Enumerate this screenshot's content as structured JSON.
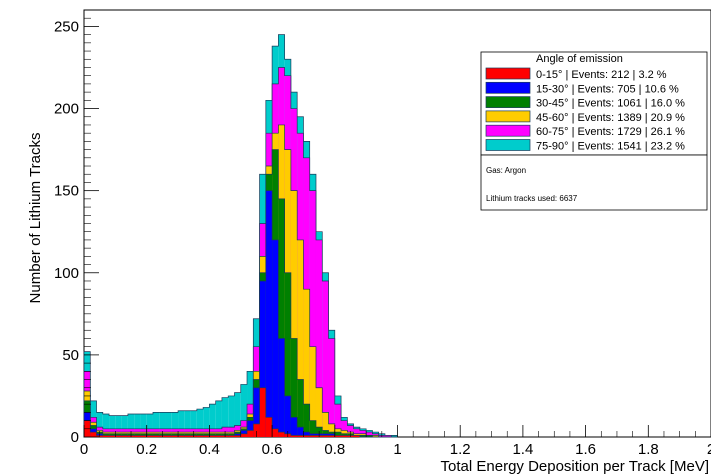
{
  "chart_data": {
    "type": "histogram-stacked",
    "xlabel": "Total Energy Deposition per Track [MeV]",
    "ylabel": "Number of Lithium Tracks",
    "xlim": [
      0,
      2
    ],
    "ylim": [
      0,
      260
    ],
    "x_ticks": [
      "0",
      "0.2",
      "0.4",
      "0.6",
      "0.8",
      "1",
      "1.2",
      "1.4",
      "1.6",
      "1.8",
      "2"
    ],
    "y_ticks": [
      "0",
      "50",
      "100",
      "150",
      "200",
      "250"
    ],
    "legend_title": "Angle of emission",
    "series": [
      {
        "name": "0-15°",
        "label": "0-15°   | Events: 212 | 3.2 %",
        "color": "#ff0000"
      },
      {
        "name": "15-30°",
        "label": "15-30° | Events: 705 | 10.6 %",
        "color": "#0000ff"
      },
      {
        "name": "30-45°",
        "label": "30-45° | Events: 1061 | 16.0 %",
        "color": "#008000"
      },
      {
        "name": "45-60°",
        "label": "45-60° | Events: 1389 | 20.9 %",
        "color": "#ffcc00"
      },
      {
        "name": "60-75°",
        "label": "60-75° | Events: 1729 | 26.1 %",
        "color": "#ff00ff"
      },
      {
        "name": "75-90°",
        "label": "75-90° | Events: 1541 | 23.2 %",
        "color": "#00cccc"
      }
    ],
    "annotations": [
      "Gas: Argon",
      "Lithium tracks used: 6637"
    ],
    "bin_width": 0.02,
    "bin_starts": [
      0.0,
      0.02,
      0.04,
      0.06,
      0.08,
      0.1,
      0.12,
      0.14,
      0.16,
      0.18,
      0.2,
      0.22,
      0.24,
      0.26,
      0.28,
      0.3,
      0.32,
      0.34,
      0.36,
      0.38,
      0.4,
      0.42,
      0.44,
      0.46,
      0.48,
      0.5,
      0.52,
      0.54,
      0.56,
      0.58,
      0.6,
      0.62,
      0.64,
      0.66,
      0.68,
      0.7,
      0.72,
      0.74,
      0.76,
      0.78,
      0.8,
      0.82,
      0.84,
      0.86,
      0.88,
      0.9,
      0.92,
      0.94,
      0.96,
      0.98
    ],
    "cumulative": {
      "0-15°": [
        10,
        3,
        1,
        1,
        1,
        1,
        1,
        1,
        1,
        1,
        1,
        1,
        1,
        1,
        1,
        1,
        1,
        1,
        1,
        1,
        1,
        1,
        1,
        1,
        1,
        2,
        4,
        8,
        30,
        12,
        5,
        3,
        2,
        1,
        1,
        1,
        1,
        1,
        1,
        1,
        1,
        1,
        1,
        1,
        0,
        0,
        0,
        0,
        0,
        0
      ],
      "15-30°": [
        15,
        5,
        2,
        1,
        1,
        1,
        1,
        1,
        1,
        1,
        1,
        1,
        1,
        1,
        1,
        1,
        1,
        1,
        1,
        1,
        1,
        1,
        1,
        1,
        2,
        4,
        10,
        30,
        95,
        150,
        120,
        60,
        25,
        12,
        6,
        3,
        2,
        2,
        2,
        2,
        1,
        1,
        1,
        1,
        0,
        0,
        0,
        0,
        0,
        0
      ],
      "30-45°": [
        22,
        7,
        3,
        2,
        2,
        2,
        2,
        2,
        2,
        2,
        2,
        2,
        2,
        2,
        2,
        2,
        2,
        2,
        2,
        2,
        2,
        2,
        2,
        2,
        3,
        5,
        12,
        35,
        100,
        160,
        175,
        145,
        100,
        60,
        35,
        20,
        10,
        6,
        4,
        3,
        3,
        2,
        2,
        1,
        1,
        1,
        0,
        0,
        0,
        0
      ],
      "45-60°": [
        28,
        9,
        4,
        3,
        3,
        3,
        3,
        3,
        3,
        3,
        3,
        3,
        3,
        3,
        3,
        3,
        3,
        3,
        3,
        3,
        3,
        3,
        3,
        3,
        4,
        6,
        14,
        40,
        110,
        165,
        185,
        190,
        175,
        150,
        120,
        90,
        55,
        30,
        15,
        8,
        5,
        4,
        3,
        2,
        2,
        1,
        1,
        0,
        0,
        0
      ],
      "60-75°": [
        40,
        12,
        6,
        5,
        5,
        5,
        5,
        5,
        5,
        5,
        5,
        5,
        5,
        5,
        5,
        5,
        5,
        5,
        5,
        5,
        5,
        5,
        6,
        6,
        7,
        10,
        20,
        55,
        130,
        185,
        215,
        225,
        220,
        200,
        185,
        170,
        150,
        120,
        95,
        60,
        20,
        10,
        7,
        5,
        4,
        3,
        2,
        1,
        1,
        0
      ],
      "75-90°": [
        52,
        22,
        15,
        14,
        13,
        13,
        13,
        14,
        14,
        14,
        14,
        15,
        15,
        15,
        15,
        16,
        16,
        16,
        17,
        18,
        20,
        22,
        24,
        25,
        27,
        32,
        40,
        72,
        160,
        205,
        238,
        245,
        230,
        210,
        195,
        180,
        160,
        125,
        100,
        65,
        25,
        12,
        8,
        6,
        5,
        4,
        3,
        2,
        1,
        1
      ]
    }
  }
}
